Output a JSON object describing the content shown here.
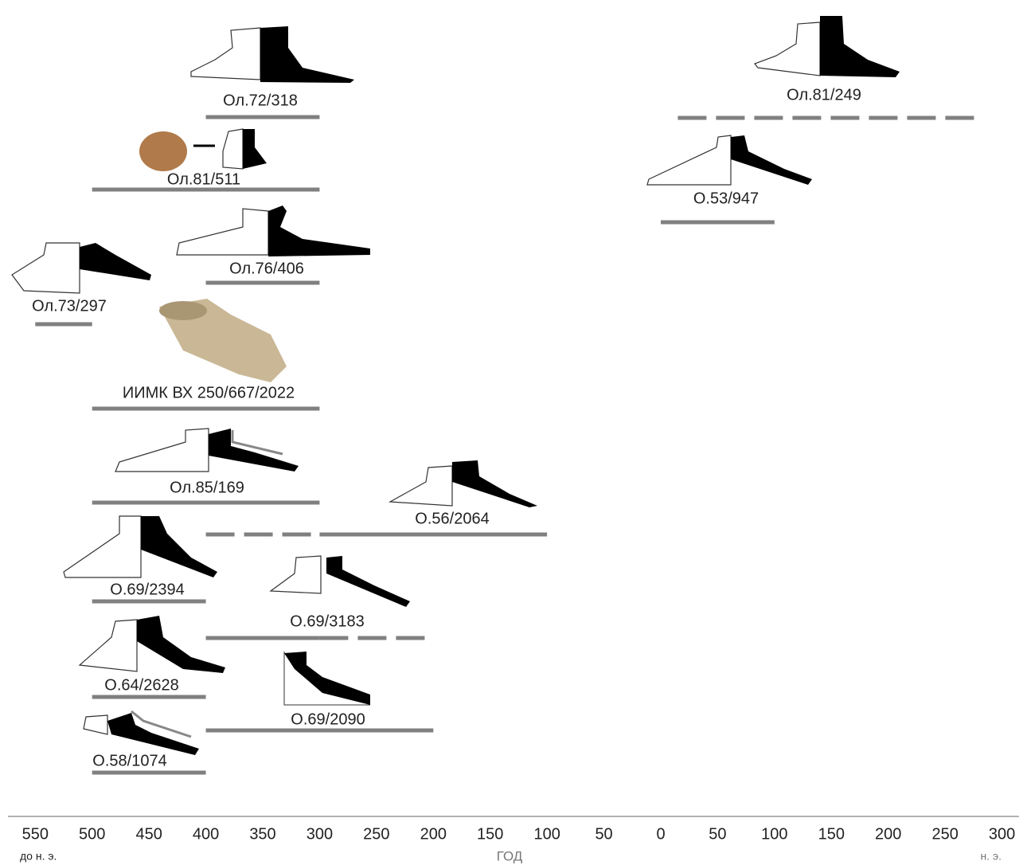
{
  "chart_data": {
    "type": "range",
    "color": "#808080",
    "xlim": [
      -574,
      315
    ],
    "xticks": [
      {
        "value": -550,
        "label": "550"
      },
      {
        "value": -500,
        "label": "500"
      },
      {
        "value": -450,
        "label": "450"
      },
      {
        "value": -400,
        "label": "400"
      },
      {
        "value": -350,
        "label": "350"
      },
      {
        "value": -300,
        "label": "300"
      },
      {
        "value": -250,
        "label": "250"
      },
      {
        "value": -200,
        "label": "200"
      },
      {
        "value": -150,
        "label": "150"
      },
      {
        "value": -100,
        "label": "100"
      },
      {
        "value": -50,
        "label": "50"
      },
      0,
      50,
      100,
      150,
      200,
      250,
      300
    ],
    "x_label_left": "до н. э.",
    "x_label": "ГОД",
    "x_label_right": "н. э.",
    "series": [
      {
        "name": "Ол.72/318",
        "segments": [
          {
            "start": -400,
            "end": -300,
            "style": "solid"
          }
        ]
      },
      {
        "name": "Ол.81/511",
        "segments": [
          {
            "start": -500,
            "end": -300,
            "style": "solid"
          }
        ]
      },
      {
        "name": "Ол.76/406",
        "segments": [
          {
            "start": -400,
            "end": -300,
            "style": "solid"
          }
        ]
      },
      {
        "name": "Ол.73/297",
        "segments": [
          {
            "start": -550,
            "end": -500,
            "style": "solid"
          }
        ]
      },
      {
        "name": "ИИМК ВХ 250/667/2022",
        "segments": [
          {
            "start": -500,
            "end": -300,
            "style": "solid"
          }
        ]
      },
      {
        "name": "Ол.85/169",
        "segments": [
          {
            "start": -500,
            "end": -300,
            "style": "solid"
          }
        ]
      },
      {
        "name": "О.56/2064",
        "segments": [
          {
            "start": -400,
            "end": -300,
            "style": "dashed"
          },
          {
            "start": -300,
            "end": -100,
            "style": "solid"
          }
        ]
      },
      {
        "name": "О.69/2394",
        "segments": [
          {
            "start": -500,
            "end": -400,
            "style": "solid"
          }
        ]
      },
      {
        "name": "О.69/3183",
        "segments": [
          {
            "start": -400,
            "end": -300,
            "style": "solid"
          },
          {
            "start": -300,
            "end": -200,
            "style": "dashed"
          }
        ]
      },
      {
        "name": "О.64/2628",
        "segments": [
          {
            "start": -500,
            "end": -400,
            "style": "solid"
          }
        ]
      },
      {
        "name": "О.69/2090",
        "segments": [
          {
            "start": -400,
            "end": -200,
            "style": "solid"
          }
        ]
      },
      {
        "name": "О.58/1074",
        "segments": [
          {
            "start": -500,
            "end": -400,
            "style": "solid"
          }
        ]
      },
      {
        "name": "Ол.81/249",
        "segments": [
          {
            "start": 15,
            "end": 280,
            "style": "dashed"
          }
        ]
      },
      {
        "name": "О.53/947",
        "segments": [
          {
            "start": 0,
            "end": 100,
            "style": "solid"
          }
        ]
      }
    ]
  }
}
